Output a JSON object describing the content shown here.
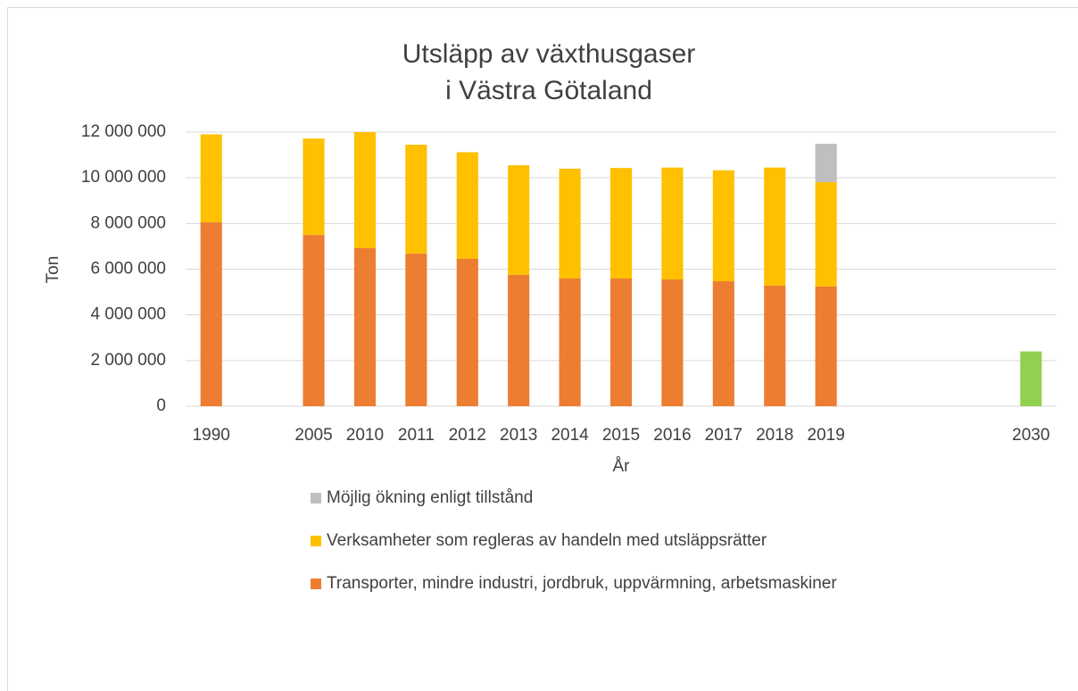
{
  "chart_data": {
    "type": "stacked_bar",
    "title": [
      "Utsläpp av växthusgaser",
      "i Västra Götaland"
    ],
    "x_label": "År",
    "y_label": "Ton",
    "categories": [
      "1990",
      null,
      "2005",
      "2010",
      "2011",
      "2012",
      "2013",
      "2014",
      "2015",
      "2016",
      "2017",
      "2018",
      "2019",
      null,
      null,
      null,
      "2030"
    ],
    "series": [
      {
        "name": "Transporter, mindre industri, jordbruk, uppvärmning, arbetsmaskiner",
        "color": "#ed7d31",
        "point_colors": {
          "16": "#92d050"
        },
        "values": [
          8050000,
          null,
          7500000,
          6920000,
          6680000,
          6450000,
          5750000,
          5590000,
          5590000,
          5550000,
          5470000,
          5280000,
          5240000,
          null,
          null,
          null,
          2400000
        ]
      },
      {
        "name": "Verksamheter som regleras av handeln med utsläppsrätter",
        "color": "#ffc000",
        "values": [
          3850000,
          null,
          4220000,
          5080000,
          4770000,
          4670000,
          4800000,
          4810000,
          4840000,
          4900000,
          4860000,
          5170000,
          4570000,
          null,
          null,
          null,
          null
        ]
      },
      {
        "name": "Möjlig ökning enligt tillstånd",
        "color": "#bfbfbf",
        "values": [
          null,
          null,
          null,
          null,
          null,
          null,
          null,
          null,
          null,
          null,
          null,
          null,
          1680000,
          null,
          null,
          null,
          null
        ]
      }
    ],
    "ylim": [
      0,
      12000000
    ],
    "yticks": [
      0,
      {
        "value": 2000000,
        "label": "2 000 000"
      },
      {
        "value": 4000000,
        "label": "4 000 000"
      },
      {
        "value": 6000000,
        "label": "6 000 000"
      },
      {
        "value": 8000000,
        "label": "8 000 000"
      },
      {
        "value": 10000000,
        "label": "10 000 000"
      },
      {
        "value": 12000000,
        "label": "12 000 000"
      }
    ],
    "grid": true,
    "legend": "bottom"
  }
}
